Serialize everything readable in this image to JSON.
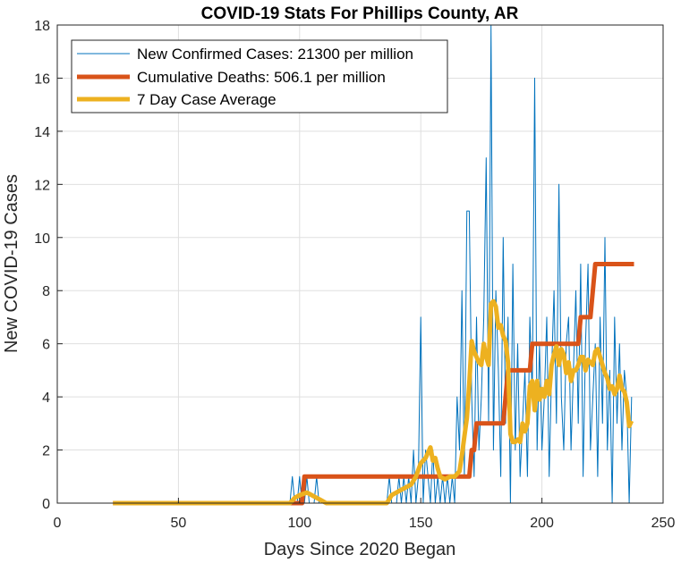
{
  "chart_data": {
    "type": "line",
    "title": "COVID-19 Stats For Phillips County, AR",
    "xlabel": "Days Since 2020 Began",
    "ylabel": "New COVID-19 Cases",
    "xlim": [
      0,
      250
    ],
    "ylim": [
      0,
      18
    ],
    "xticks": [
      0,
      50,
      100,
      150,
      200,
      250
    ],
    "yticks": [
      0,
      2,
      4,
      6,
      8,
      10,
      12,
      14,
      16,
      18
    ],
    "grid": true,
    "legend_position": "top-left",
    "series": [
      {
        "name": "New Confirmed Cases: 21300 per million",
        "color": "#0072BD",
        "style": "thin",
        "points": [
          [
            23,
            0
          ],
          [
            95,
            0
          ],
          [
            96,
            0
          ],
          [
            97,
            1
          ],
          [
            98,
            0
          ],
          [
            99,
            0
          ],
          [
            100,
            1
          ],
          [
            101,
            0
          ],
          [
            102,
            0
          ],
          [
            103,
            1
          ],
          [
            104,
            0
          ],
          [
            105,
            0
          ],
          [
            106,
            0
          ],
          [
            107,
            1
          ],
          [
            108,
            0
          ],
          [
            109,
            0
          ],
          [
            110,
            0
          ],
          [
            112,
            0
          ],
          [
            135,
            0
          ],
          [
            136,
            0
          ],
          [
            137,
            1
          ],
          [
            138,
            0
          ],
          [
            139,
            0
          ],
          [
            140,
            0
          ],
          [
            141,
            1
          ],
          [
            142,
            0
          ],
          [
            143,
            1
          ],
          [
            144,
            0
          ],
          [
            145,
            1
          ],
          [
            146,
            0
          ],
          [
            147,
            2
          ],
          [
            148,
            0
          ],
          [
            149,
            1
          ],
          [
            150,
            7
          ],
          [
            151,
            0
          ],
          [
            152,
            2
          ],
          [
            153,
            1
          ],
          [
            154,
            0
          ],
          [
            155,
            2
          ],
          [
            156,
            0
          ],
          [
            157,
            1
          ],
          [
            158,
            0
          ],
          [
            159,
            1
          ],
          [
            160,
            0
          ],
          [
            161,
            1
          ],
          [
            162,
            0
          ],
          [
            163,
            1
          ],
          [
            164,
            0
          ],
          [
            165,
            4
          ],
          [
            166,
            2
          ],
          [
            167,
            8
          ],
          [
            168,
            1
          ],
          [
            169,
            11
          ],
          [
            170,
            11
          ],
          [
            171,
            4
          ],
          [
            172,
            1
          ],
          [
            173,
            7
          ],
          [
            174,
            2
          ],
          [
            175,
            4
          ],
          [
            176,
            7
          ],
          [
            177,
            13
          ],
          [
            178,
            3
          ],
          [
            179,
            18
          ],
          [
            180,
            2
          ],
          [
            181,
            8
          ],
          [
            182,
            5
          ],
          [
            183,
            1
          ],
          [
            184,
            10
          ],
          [
            185,
            3
          ],
          [
            186,
            7
          ],
          [
            187,
            0
          ],
          [
            188,
            9
          ],
          [
            189,
            2
          ],
          [
            190,
            6
          ],
          [
            191,
            1
          ],
          [
            192,
            3
          ],
          [
            193,
            5
          ],
          [
            194,
            1
          ],
          [
            195,
            7
          ],
          [
            196,
            4
          ],
          [
            197,
            16
          ],
          [
            198,
            2
          ],
          [
            199,
            6
          ],
          [
            200,
            2
          ],
          [
            201,
            4
          ],
          [
            202,
            7
          ],
          [
            203,
            1
          ],
          [
            204,
            5
          ],
          [
            205,
            8
          ],
          [
            206,
            3
          ],
          [
            207,
            12
          ],
          [
            208,
            4
          ],
          [
            209,
            2
          ],
          [
            210,
            6
          ],
          [
            211,
            7
          ],
          [
            212,
            2
          ],
          [
            213,
            5
          ],
          [
            214,
            8
          ],
          [
            215,
            3
          ],
          [
            216,
            9
          ],
          [
            217,
            1
          ],
          [
            218,
            6
          ],
          [
            219,
            9
          ],
          [
            220,
            2
          ],
          [
            221,
            4
          ],
          [
            222,
            6
          ],
          [
            223,
            1
          ],
          [
            224,
            7
          ],
          [
            225,
            3
          ],
          [
            226,
            10
          ],
          [
            227,
            2
          ],
          [
            228,
            5
          ],
          [
            229,
            0
          ],
          [
            230,
            7
          ],
          [
            231,
            3
          ],
          [
            232,
            6
          ],
          [
            233,
            2
          ],
          [
            234,
            5
          ],
          [
            235,
            4
          ],
          [
            236,
            0
          ],
          [
            237,
            4
          ]
        ]
      },
      {
        "name": "Cumulative Deaths: 506.1 per million",
        "color": "#D95319",
        "style": "thick",
        "points": [
          [
            23,
            0
          ],
          [
            101,
            0
          ],
          [
            102,
            1
          ],
          [
            170,
            1
          ],
          [
            171,
            2
          ],
          [
            172,
            2
          ],
          [
            173,
            3
          ],
          [
            184,
            3
          ],
          [
            186,
            5
          ],
          [
            195,
            5
          ],
          [
            196,
            6
          ],
          [
            207,
            6
          ],
          [
            208,
            6
          ],
          [
            215,
            6
          ],
          [
            216,
            7
          ],
          [
            220,
            7
          ],
          [
            222,
            9
          ],
          [
            238,
            9
          ]
        ]
      },
      {
        "name": "7 Day Case Average",
        "color": "#EDB120",
        "style": "thick",
        "points": [
          [
            23,
            0
          ],
          [
            96,
            0
          ],
          [
            98,
            0.2
          ],
          [
            100,
            0.3
          ],
          [
            103,
            0.4
          ],
          [
            105,
            0.3
          ],
          [
            107,
            0.2
          ],
          [
            109,
            0.1
          ],
          [
            111,
            0
          ],
          [
            136,
            0
          ],
          [
            138,
            0.3
          ],
          [
            140,
            0.4
          ],
          [
            142,
            0.5
          ],
          [
            144,
            0.6
          ],
          [
            146,
            0.7
          ],
          [
            148,
            1.0
          ],
          [
            150,
            1.5
          ],
          [
            152,
            1.7
          ],
          [
            153,
            1.9
          ],
          [
            154,
            2.1
          ],
          [
            155,
            1.6
          ],
          [
            156,
            1.7
          ],
          [
            157,
            1.3
          ],
          [
            158,
            1.0
          ],
          [
            160,
            0.9
          ],
          [
            162,
            1.0
          ],
          [
            164,
            1.0
          ],
          [
            166,
            1.2
          ],
          [
            167,
            1.8
          ],
          [
            168,
            2.5
          ],
          [
            169,
            3.2
          ],
          [
            170,
            4.5
          ],
          [
            171,
            6.1
          ],
          [
            172,
            5.7
          ],
          [
            173,
            5.5
          ],
          [
            174,
            5.3
          ],
          [
            175,
            5.2
          ],
          [
            176,
            6.0
          ],
          [
            177,
            5.5
          ],
          [
            178,
            5.2
          ],
          [
            179,
            7.5
          ],
          [
            180,
            7.6
          ],
          [
            181,
            7.4
          ],
          [
            182,
            6.6
          ],
          [
            183,
            6.7
          ],
          [
            184,
            6.3
          ],
          [
            185,
            6.1
          ],
          [
            186,
            5.3
          ],
          [
            187,
            2.6
          ],
          [
            188,
            2.3
          ],
          [
            189,
            2.3
          ],
          [
            190,
            2.4
          ],
          [
            191,
            2.3
          ],
          [
            192,
            3.0
          ],
          [
            193,
            2.7
          ],
          [
            194,
            3.0
          ],
          [
            195,
            4.4
          ],
          [
            196,
            4.6
          ],
          [
            197,
            3.5
          ],
          [
            198,
            4.6
          ],
          [
            199,
            3.9
          ],
          [
            200,
            4.3
          ],
          [
            201,
            4.0
          ],
          [
            202,
            4.6
          ],
          [
            203,
            4.1
          ],
          [
            204,
            5.2
          ],
          [
            205,
            5.6
          ],
          [
            206,
            5.9
          ],
          [
            207,
            5.2
          ],
          [
            208,
            5.8
          ],
          [
            209,
            5.6
          ],
          [
            210,
            4.9
          ],
          [
            211,
            5.3
          ],
          [
            212,
            4.6
          ],
          [
            213,
            5.0
          ],
          [
            214,
            5.0
          ],
          [
            215,
            5.2
          ],
          [
            216,
            5.5
          ],
          [
            217,
            5.5
          ],
          [
            218,
            5.0
          ],
          [
            219,
            5.4
          ],
          [
            220,
            5.3
          ],
          [
            221,
            5.2
          ],
          [
            222,
            5.7
          ],
          [
            223,
            5.8
          ],
          [
            224,
            5.5
          ],
          [
            225,
            5.2
          ],
          [
            226,
            4.9
          ],
          [
            227,
            4.7
          ],
          [
            228,
            4.3
          ],
          [
            229,
            4.4
          ],
          [
            230,
            4.1
          ],
          [
            231,
            4.3
          ],
          [
            232,
            4.8
          ],
          [
            233,
            4.3
          ],
          [
            234,
            4.2
          ],
          [
            235,
            3.8
          ],
          [
            236,
            2.9
          ],
          [
            237,
            3.1
          ]
        ]
      }
    ]
  }
}
